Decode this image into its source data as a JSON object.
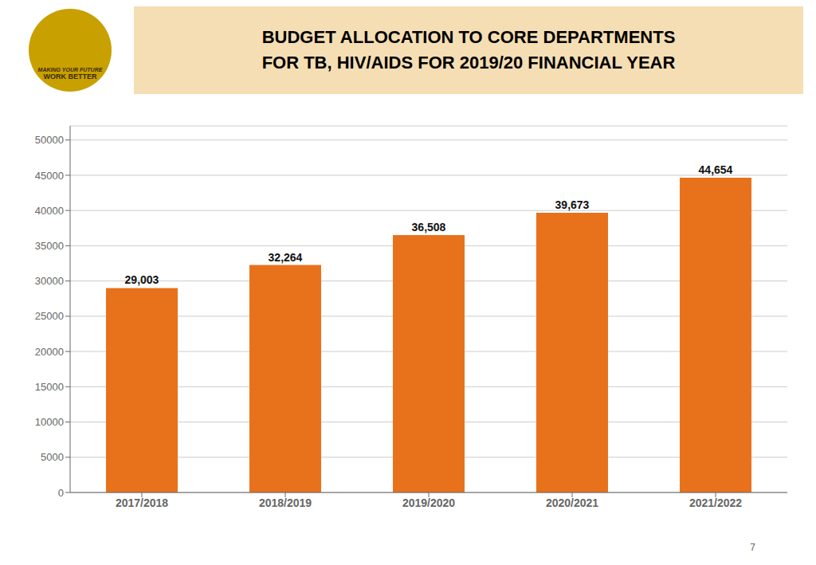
{
  "chart_data": {
    "type": "bar",
    "title": "BUDGET ALLOCATION TO CORE DEPARTMENTS",
    "subtitle": "FOR TB, HIV/AIDS FOR 2019/20 FINANCIAL YEAR",
    "categories": [
      "2017/2018",
      "2018/2019",
      "2019/2020",
      "2020/2021",
      "2021/2022"
    ],
    "values": [
      29003,
      32264,
      36508,
      39673,
      44654
    ],
    "value_labels": [
      "29,003",
      "32,264",
      "36,508",
      "39,673",
      "44,654"
    ],
    "data_labels": true,
    "color": "#E8721C",
    "ylim": [
      0,
      52000
    ],
    "yticks": [
      0,
      5000,
      10000,
      15000,
      20000,
      25000,
      30000,
      35000,
      40000,
      45000,
      50000
    ],
    "grid": true,
    "annotations": [
      "MAKING YOUR FUTURE",
      "WORK BETTER",
      "7"
    ]
  }
}
